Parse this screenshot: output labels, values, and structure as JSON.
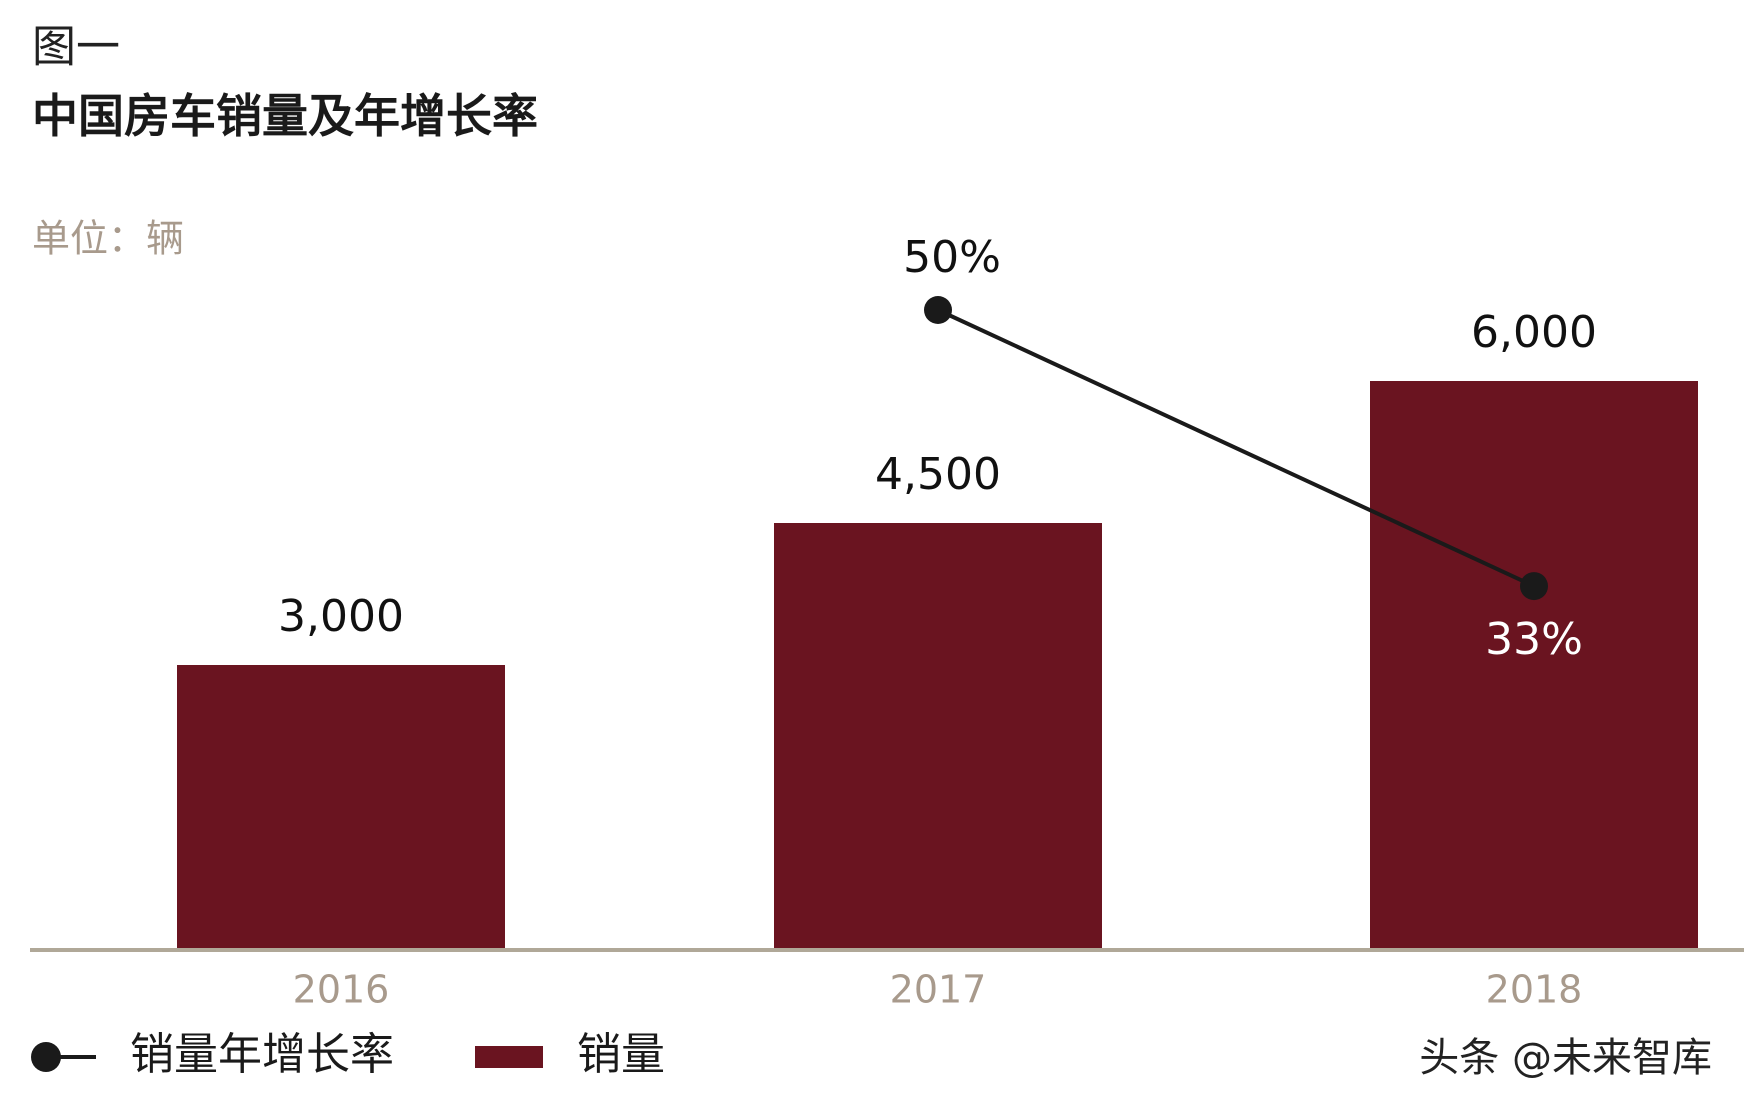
{
  "chart_data": {
    "type": "bar",
    "figure_label": "图一",
    "title": "中国房车销量及年增长率",
    "unit": "单位：辆",
    "categories": [
      "2016",
      "2017",
      "2018"
    ],
    "series": [
      {
        "name": "销量",
        "type": "bar",
        "color": "#6a1420",
        "values": [
          3000,
          4500,
          6000
        ],
        "value_labels": [
          "3,000",
          "4,500",
          "6,000"
        ]
      },
      {
        "name": "销量年增长率",
        "type": "line",
        "axis": "y2",
        "color": "#1a1a1a",
        "values": [
          null,
          50,
          33
        ],
        "value_labels": [
          null,
          "50%",
          "33%"
        ]
      }
    ],
    "ylim": [
      0,
      6000
    ],
    "y2lim": [
      0,
      50
    ],
    "watermark": "头条 @未来智库"
  }
}
